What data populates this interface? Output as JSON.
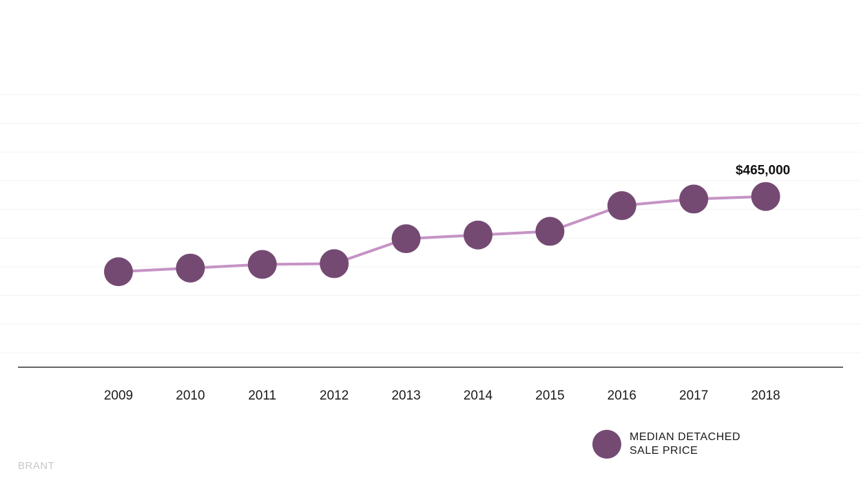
{
  "chart_data": {
    "type": "line",
    "categories": [
      "2009",
      "2010",
      "2011",
      "2012",
      "2013",
      "2014",
      "2015",
      "2016",
      "2017",
      "2018"
    ],
    "series": [
      {
        "name": "MEDIAN DETACHED SALE PRICE",
        "values": [
          260000,
          270000,
          280000,
          282000,
          350000,
          360000,
          370000,
          440000,
          458000,
          465000
        ]
      }
    ],
    "data_labels": [
      {
        "index": 9,
        "text": "$465,000"
      }
    ],
    "ylim": [
      0,
      1000000
    ],
    "grid": true,
    "legend_position": "bottom-right",
    "colors": {
      "marker": "#744a73",
      "line": "#c693c5",
      "gridline": "#f3f3f3",
      "axis": "#333333",
      "region_label": "#c8c8c8"
    }
  },
  "legend": {
    "line1": "MEDIAN DETACHED",
    "line2": "SALE PRICE"
  },
  "region_label": "BRANT"
}
